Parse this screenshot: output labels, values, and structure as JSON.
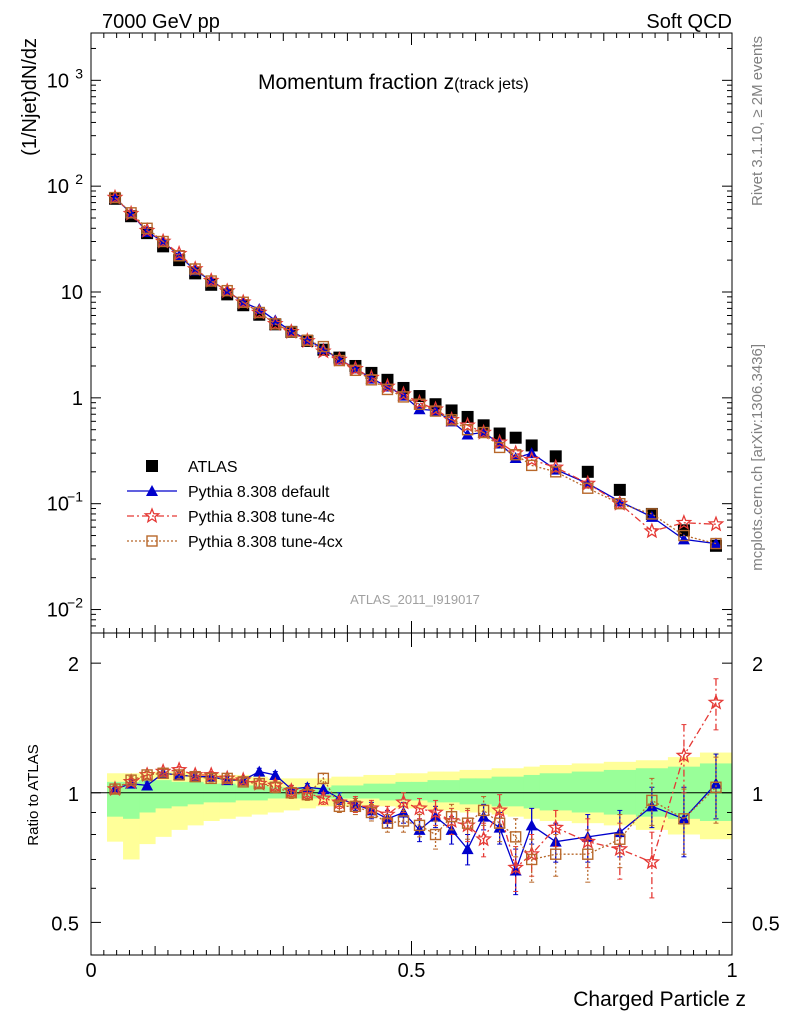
{
  "header": {
    "left": "7000 GeV pp",
    "right": "Soft QCD"
  },
  "side_labels": {
    "top": "Rivet 3.1.10, ≥ 2M events",
    "bottom": "mcplots.cern.ch [arXiv:1306.3436]"
  },
  "chart_data": [
    {
      "type": "scatter",
      "title": "Momentum fraction z",
      "title_sub": "(track jets)",
      "ylabel": "(1/Njet)dN/dz",
      "xlabel": "Charged Particle z",
      "watermark": "ATLAS_2011_I919017",
      "ylog": true,
      "ylim": [
        0.006,
        2800
      ],
      "xlim": [
        0,
        1
      ],
      "yticks": [
        {
          "value": 1000,
          "label": "10",
          "sup": "3"
        },
        {
          "value": 100,
          "label": "10",
          "sup": "2"
        },
        {
          "value": 10,
          "label": "10",
          "sup": ""
        },
        {
          "value": 1,
          "label": "1",
          "sup": ""
        },
        {
          "value": 0.1,
          "label": "10",
          "sup": "−1"
        },
        {
          "value": 0.01,
          "label": "10",
          "sup": "−2"
        }
      ],
      "legend": [
        "ATLAS",
        "Pythia 8.308 default",
        "Pythia 8.308 tune-4c",
        "Pythia 8.308 tune-4cx"
      ],
      "series": [
        {
          "name": "ATLAS",
          "color": "#000000",
          "marker": "square",
          "x": [
            0.0375,
            0.0625,
            0.0875,
            0.1125,
            0.1375,
            0.1625,
            0.1875,
            0.2125,
            0.2375,
            0.2625,
            0.2875,
            0.3125,
            0.3375,
            0.3625,
            0.3875,
            0.4125,
            0.4375,
            0.4625,
            0.4875,
            0.5125,
            0.5375,
            0.5625,
            0.5875,
            0.6125,
            0.6375,
            0.6625,
            0.6875,
            0.725,
            0.775,
            0.825,
            0.875,
            0.925,
            0.975
          ],
          "y": [
            76,
            52,
            36,
            27,
            20,
            15,
            11.7,
            9.5,
            7.5,
            6.1,
            4.95,
            4.2,
            3.45,
            2.85,
            2.4,
            2.0,
            1.72,
            1.48,
            1.24,
            1.04,
            0.87,
            0.76,
            0.66,
            0.55,
            0.46,
            0.42,
            0.355,
            0.28,
            0.2,
            0.135,
            0.08,
            0.056,
            0.04
          ]
        },
        {
          "name": "Pythia 8.308 default",
          "color": "#0000cc",
          "marker": "triangle",
          "x": [
            0.0375,
            0.0625,
            0.0875,
            0.1125,
            0.1375,
            0.1625,
            0.1875,
            0.2125,
            0.2375,
            0.2625,
            0.2875,
            0.3125,
            0.3375,
            0.3625,
            0.3875,
            0.4125,
            0.4375,
            0.4625,
            0.4875,
            0.5125,
            0.5375,
            0.5625,
            0.5875,
            0.6125,
            0.6375,
            0.6625,
            0.6875,
            0.725,
            0.775,
            0.825,
            0.875,
            0.925,
            0.975
          ],
          "y": [
            78,
            55,
            37,
            30,
            22,
            16,
            12.8,
            10.2,
            8.0,
            6.9,
            5.4,
            4.25,
            3.55,
            2.9,
            2.3,
            1.9,
            1.52,
            1.28,
            1.05,
            0.78,
            0.76,
            0.6,
            0.45,
            0.47,
            0.37,
            0.27,
            0.3,
            0.21,
            0.155,
            0.105,
            0.075,
            0.046,
            0.042
          ]
        },
        {
          "name": "Pythia 8.308 tune-4c",
          "color": "#e53935",
          "marker": "star",
          "x": [
            0.0375,
            0.0625,
            0.0875,
            0.1125,
            0.1375,
            0.1625,
            0.1875,
            0.2125,
            0.2375,
            0.2625,
            0.2875,
            0.3125,
            0.3375,
            0.3625,
            0.3875,
            0.4125,
            0.4375,
            0.4625,
            0.4875,
            0.5125,
            0.5375,
            0.5625,
            0.5875,
            0.6125,
            0.6375,
            0.6625,
            0.6875,
            0.725,
            0.775,
            0.825,
            0.875,
            0.925,
            0.975
          ],
          "y": [
            78,
            55,
            38,
            30,
            23,
            16.5,
            12.8,
            10.2,
            8.0,
            6.4,
            5.0,
            4.2,
            3.45,
            2.75,
            2.3,
            1.88,
            1.55,
            1.28,
            1.08,
            0.9,
            0.78,
            0.62,
            0.55,
            0.47,
            0.38,
            0.3,
            0.26,
            0.22,
            0.155,
            0.1,
            0.055,
            0.066,
            0.064
          ]
        },
        {
          "name": "Pythia 8.308 tune-4cx",
          "color": "#b8682b",
          "marker": "open-square",
          "x": [
            0.0375,
            0.0625,
            0.0875,
            0.1125,
            0.1375,
            0.1625,
            0.1875,
            0.2125,
            0.2375,
            0.2625,
            0.2875,
            0.3125,
            0.3375,
            0.3625,
            0.3875,
            0.4125,
            0.4375,
            0.4625,
            0.4875,
            0.5125,
            0.5375,
            0.5625,
            0.5875,
            0.6125,
            0.6375,
            0.6625,
            0.6875,
            0.725,
            0.775,
            0.825,
            0.875,
            0.925,
            0.975
          ],
          "y": [
            78,
            56,
            40,
            30,
            22,
            16.5,
            12.7,
            10.3,
            8.0,
            6.4,
            5.0,
            4.2,
            3.5,
            3.05,
            2.25,
            1.82,
            1.48,
            1.2,
            1.02,
            0.87,
            0.75,
            0.62,
            0.5,
            0.47,
            0.34,
            0.29,
            0.23,
            0.2,
            0.14,
            0.1,
            0.08,
            0.05,
            0.042
          ]
        }
      ]
    },
    {
      "type": "line",
      "ylabel": "Ratio to ATLAS",
      "xlabel": "Charged Particle z",
      "xlim": [
        0,
        1
      ],
      "ylim": [
        0.42,
        2.35
      ],
      "ylog": true,
      "yticks": [
        {
          "value": 0.5,
          "label": "0.5"
        },
        {
          "value": 1,
          "label": "1"
        },
        {
          "value": 2,
          "label": "2"
        }
      ],
      "xticks": [
        {
          "value": 0,
          "label": "0"
        },
        {
          "value": 0.5,
          "label": "0.5"
        },
        {
          "value": 1,
          "label": "1"
        }
      ],
      "band_colors": {
        "outer": "#ffff99",
        "inner": "#99ff99"
      },
      "bands": {
        "edges": [
          0.025,
          0.05,
          0.075,
          0.1,
          0.125,
          0.15,
          0.175,
          0.2,
          0.225,
          0.25,
          0.275,
          0.3,
          0.325,
          0.35,
          0.375,
          0.4,
          0.425,
          0.45,
          0.475,
          0.5,
          0.525,
          0.55,
          0.575,
          0.6,
          0.625,
          0.65,
          0.675,
          0.7,
          0.75,
          0.8,
          0.85,
          0.9,
          0.95,
          1.0
        ],
        "outer_lo": [
          0.77,
          0.7,
          0.76,
          0.79,
          0.82,
          0.84,
          0.86,
          0.87,
          0.88,
          0.89,
          0.9,
          0.91,
          0.92,
          0.93,
          0.93,
          0.93,
          0.93,
          0.93,
          0.92,
          0.92,
          0.91,
          0.91,
          0.9,
          0.9,
          0.89,
          0.88,
          0.87,
          0.86,
          0.85,
          0.84,
          0.82,
          0.8,
          0.78
        ],
        "outer_hi": [
          1.11,
          1.11,
          1.12,
          1.12,
          1.12,
          1.11,
          1.11,
          1.1,
          1.1,
          1.09,
          1.08,
          1.08,
          1.08,
          1.08,
          1.09,
          1.09,
          1.1,
          1.1,
          1.11,
          1.11,
          1.12,
          1.12,
          1.13,
          1.13,
          1.14,
          1.14,
          1.15,
          1.16,
          1.17,
          1.18,
          1.19,
          1.21,
          1.24
        ],
        "inner_lo": [
          0.88,
          0.87,
          0.9,
          0.92,
          0.93,
          0.94,
          0.95,
          0.95,
          0.96,
          0.96,
          0.97,
          0.97,
          0.97,
          0.97,
          0.97,
          0.97,
          0.97,
          0.96,
          0.96,
          0.96,
          0.95,
          0.95,
          0.94,
          0.94,
          0.93,
          0.93,
          0.92,
          0.91,
          0.9,
          0.89,
          0.88,
          0.87,
          0.86
        ],
        "inner_hi": [
          1.06,
          1.06,
          1.07,
          1.07,
          1.06,
          1.06,
          1.05,
          1.05,
          1.04,
          1.04,
          1.03,
          1.03,
          1.03,
          1.03,
          1.04,
          1.04,
          1.05,
          1.05,
          1.06,
          1.06,
          1.07,
          1.07,
          1.08,
          1.08,
          1.09,
          1.09,
          1.1,
          1.11,
          1.12,
          1.13,
          1.14,
          1.15,
          1.17
        ]
      },
      "series": [
        {
          "name": "Pythia 8.308 default",
          "color": "#0000cc",
          "marker": "triangle",
          "x": [
            0.0375,
            0.0625,
            0.0875,
            0.1125,
            0.1375,
            0.1625,
            0.1875,
            0.2125,
            0.2375,
            0.2625,
            0.2875,
            0.3125,
            0.3375,
            0.3625,
            0.3875,
            0.4125,
            0.4375,
            0.4625,
            0.4875,
            0.5125,
            0.5375,
            0.5625,
            0.5875,
            0.6125,
            0.6375,
            0.6625,
            0.6875,
            0.725,
            0.775,
            0.825,
            0.875,
            0.925,
            0.975
          ],
          "y": [
            1.02,
            1.05,
            1.04,
            1.11,
            1.1,
            1.09,
            1.09,
            1.07,
            1.07,
            1.12,
            1.1,
            1.02,
            1.03,
            1.02,
            0.97,
            0.94,
            0.91,
            0.87,
            0.9,
            0.82,
            0.88,
            0.82,
            0.74,
            0.88,
            0.83,
            0.66,
            0.84,
            0.77,
            0.79,
            0.81,
            0.93,
            0.87,
            1.05
          ],
          "err": [
            0.02,
            0.02,
            0.02,
            0.02,
            0.02,
            0.02,
            0.02,
            0.02,
            0.02,
            0.02,
            0.02,
            0.02,
            0.02,
            0.03,
            0.03,
            0.03,
            0.04,
            0.04,
            0.05,
            0.05,
            0.05,
            0.06,
            0.06,
            0.06,
            0.07,
            0.08,
            0.08,
            0.08,
            0.1,
            0.1,
            0.1,
            0.16,
            0.18
          ]
        },
        {
          "name": "Pythia 8.308 tune-4c",
          "color": "#e53935",
          "marker": "star",
          "x": [
            0.0375,
            0.0625,
            0.0875,
            0.1125,
            0.1375,
            0.1625,
            0.1875,
            0.2125,
            0.2375,
            0.2625,
            0.2875,
            0.3125,
            0.3375,
            0.3625,
            0.3875,
            0.4125,
            0.4375,
            0.4625,
            0.4875,
            0.5125,
            0.5375,
            0.5625,
            0.5875,
            0.6125,
            0.6375,
            0.6625,
            0.6875,
            0.725,
            0.775,
            0.825,
            0.875,
            0.925,
            0.975
          ],
          "y": [
            1.02,
            1.06,
            1.1,
            1.12,
            1.13,
            1.1,
            1.1,
            1.08,
            1.07,
            1.05,
            1.04,
            1.01,
            1.0,
            0.97,
            0.95,
            0.94,
            0.92,
            0.89,
            0.95,
            0.92,
            0.9,
            0.86,
            0.84,
            0.78,
            0.91,
            0.67,
            0.72,
            0.83,
            0.77,
            0.74,
            0.69,
            1.22,
            1.62
          ],
          "err": [
            0.02,
            0.02,
            0.02,
            0.02,
            0.02,
            0.02,
            0.02,
            0.02,
            0.02,
            0.02,
            0.03,
            0.03,
            0.03,
            0.03,
            0.03,
            0.04,
            0.04,
            0.04,
            0.05,
            0.05,
            0.06,
            0.06,
            0.07,
            0.07,
            0.08,
            0.08,
            0.08,
            0.08,
            0.1,
            0.11,
            0.12,
            0.22,
            0.22
          ]
        },
        {
          "name": "Pythia 8.308 tune-4cx",
          "color": "#b8682b",
          "marker": "open-square",
          "x": [
            0.0375,
            0.0625,
            0.0875,
            0.1125,
            0.1375,
            0.1625,
            0.1875,
            0.2125,
            0.2375,
            0.2625,
            0.2875,
            0.3125,
            0.3375,
            0.3625,
            0.3875,
            0.4125,
            0.4375,
            0.4625,
            0.4875,
            0.5125,
            0.5375,
            0.5625,
            0.5875,
            0.6125,
            0.6375,
            0.6625,
            0.6875,
            0.725,
            0.775,
            0.825,
            0.875,
            0.925,
            0.975
          ],
          "y": [
            1.02,
            1.07,
            1.1,
            1.11,
            1.1,
            1.09,
            1.08,
            1.08,
            1.06,
            1.05,
            1.03,
            1.0,
            0.99,
            1.08,
            0.93,
            0.93,
            0.9,
            0.85,
            0.86,
            0.84,
            0.8,
            0.88,
            0.85,
            0.91,
            0.85,
            0.79,
            0.7,
            0.72,
            0.72,
            0.78,
            0.96,
            0.87,
            1.03
          ],
          "err": [
            0.02,
            0.02,
            0.02,
            0.02,
            0.02,
            0.02,
            0.02,
            0.02,
            0.02,
            0.02,
            0.03,
            0.03,
            0.03,
            0.03,
            0.03,
            0.04,
            0.04,
            0.04,
            0.05,
            0.05,
            0.06,
            0.06,
            0.07,
            0.07,
            0.08,
            0.08,
            0.08,
            0.08,
            0.1,
            0.11,
            0.12,
            0.15,
            0.18
          ]
        }
      ]
    }
  ]
}
